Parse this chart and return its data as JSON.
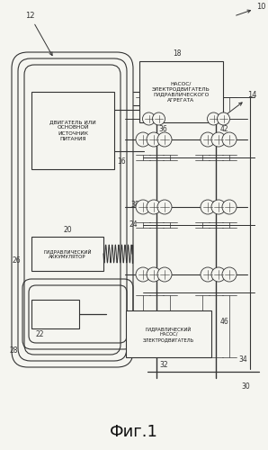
{
  "title": "Фиг.1",
  "bg_color": "#f5f5f0",
  "line_color": "#333333",
  "box_text1": "НАСОС/\nЭЛЕКТРОДВИГАТЕЛЬ\nГИДРАВЛИЧЕСКОГО\nАГРЕГАТА",
  "box_text2": "ДВИГАТЕЛЬ ИЛИ\nОСНОВНОЙ\nИСТОЧНИК\nПИТАНИЯ",
  "box_text3": "ГИДРАВЛИЧЕСКИЙ\nАККУМУЛЯТОР",
  "box_text4": "ГИДРАВЛИЧЕСКИЙ\nНАСОС/\nЭЛЕКТРОДВИГАТЕЛЬ"
}
